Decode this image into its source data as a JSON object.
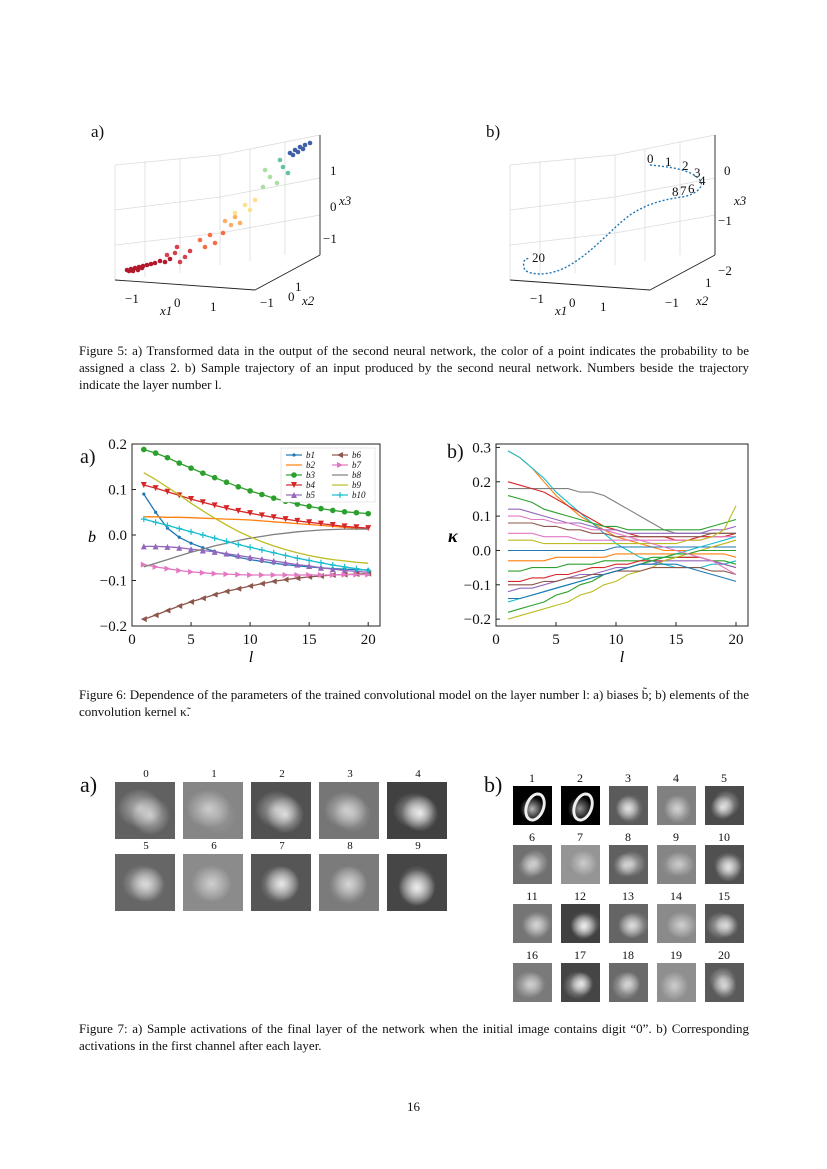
{
  "figure5": {
    "panel_a": "a)",
    "panel_b": "b)",
    "caption": "Figure 5: a) Transformed data in the output of the second neural network, the color of a point indicates the probability to be assigned a class 2. b) Sample trajectory of an input produced by the second neural network. Numbers beside the trajectory indicate the layer number l.",
    "a_axes": {
      "x1_label": "x1",
      "x2_label": "x2",
      "x3_label": "x3",
      "x1_ticks": [
        "−1",
        "0",
        "1"
      ],
      "x2_ticks": [
        "1",
        "0",
        "−1"
      ],
      "x3_ticks": [
        "1",
        "0",
        "−1"
      ]
    },
    "b_axes": {
      "x1_label": "x1",
      "x2_label": "x2",
      "x3_label": "x3",
      "x1_ticks": [
        "−1",
        "0",
        "1"
      ],
      "x2_ticks": [
        "1",
        "−1"
      ],
      "x3_ticks": [
        "0",
        "−1",
        "−2"
      ]
    },
    "b_layer_labels": [
      "0",
      "1",
      "2",
      "3",
      "4",
      "8",
      "7",
      "6",
      "20"
    ]
  },
  "figure6": {
    "panel_a": "a)",
    "panel_b": "b)",
    "caption": "Figure 6: Dependence of the parameters of the trained convolutional model on the layer number l: a) biases b̃; b) elements of the convolution kernel κ̃.",
    "chart_data": [
      {
        "type": "line",
        "xlabel": "l",
        "ylabel": "b",
        "xlim": [
          0,
          21
        ],
        "ylim": [
          -0.2,
          0.2
        ],
        "xticks": [
          "0",
          "5",
          "10",
          "15",
          "20"
        ],
        "yticks": [
          "0.2",
          "0.1",
          "0.0",
          "−0.1",
          "−0.2"
        ],
        "legend_position": "top-right",
        "x": [
          1,
          2,
          3,
          4,
          5,
          6,
          7,
          8,
          9,
          10,
          11,
          12,
          13,
          14,
          15,
          16,
          17,
          18,
          19,
          20
        ],
        "series": [
          {
            "name": "b1",
            "color": "#1f77b4",
            "marker": "dot",
            "values": [
              0.09,
              0.05,
              0.015,
              -0.005,
              -0.018,
              -0.028,
              -0.036,
              -0.043,
              -0.049,
              -0.054,
              -0.058,
              -0.062,
              -0.065,
              -0.068,
              -0.07,
              -0.072,
              -0.074,
              -0.075,
              -0.076,
              -0.077
            ]
          },
          {
            "name": "b2",
            "color": "#ff7f0e",
            "marker": "none",
            "values": [
              0.04,
              0.04,
              0.039,
              0.039,
              0.038,
              0.037,
              0.036,
              0.035,
              0.034,
              0.033,
              0.031,
              0.029,
              0.027,
              0.025,
              0.023,
              0.021,
              0.019,
              0.017,
              0.015,
              0.013
            ]
          },
          {
            "name": "b3",
            "color": "#2ca02c",
            "marker": "circle",
            "values": [
              0.188,
              0.18,
              0.17,
              0.158,
              0.147,
              0.136,
              0.126,
              0.116,
              0.106,
              0.097,
              0.089,
              0.081,
              0.074,
              0.068,
              0.063,
              0.058,
              0.054,
              0.051,
              0.049,
              0.047
            ]
          },
          {
            "name": "b4",
            "color": "#d62728",
            "marker": "triangle-down",
            "values": [
              0.11,
              0.103,
              0.095,
              0.087,
              0.079,
              0.072,
              0.065,
              0.059,
              0.053,
              0.048,
              0.043,
              0.039,
              0.035,
              0.031,
              0.028,
              0.025,
              0.022,
              0.019,
              0.017,
              0.015
            ]
          },
          {
            "name": "b5",
            "color": "#9467bd",
            "marker": "triangle-up",
            "values": [
              -0.025,
              -0.025,
              -0.026,
              -0.028,
              -0.031,
              -0.034,
              -0.037,
              -0.041,
              -0.045,
              -0.049,
              -0.053,
              -0.057,
              -0.061,
              -0.065,
              -0.068,
              -0.072,
              -0.075,
              -0.078,
              -0.08,
              -0.082
            ]
          },
          {
            "name": "b6",
            "color": "#8c564b",
            "marker": "triangle-left",
            "values": [
              -0.185,
              -0.176,
              -0.166,
              -0.156,
              -0.147,
              -0.139,
              -0.131,
              -0.124,
              -0.118,
              -0.112,
              -0.107,
              -0.102,
              -0.098,
              -0.095,
              -0.092,
              -0.09,
              -0.088,
              -0.087,
              -0.086,
              -0.085
            ]
          },
          {
            "name": "b7",
            "color": "#e377c2",
            "marker": "triangle-right",
            "values": [
              -0.065,
              -0.07,
              -0.074,
              -0.078,
              -0.081,
              -0.083,
              -0.085,
              -0.086,
              -0.087,
              -0.088,
              -0.088,
              -0.088,
              -0.088,
              -0.088,
              -0.088,
              -0.088,
              -0.088,
              -0.087,
              -0.087,
              -0.087
            ]
          },
          {
            "name": "b8",
            "color": "#7f7f7f",
            "marker": "none",
            "values": [
              -0.07,
              -0.062,
              -0.054,
              -0.046,
              -0.038,
              -0.031,
              -0.024,
              -0.018,
              -0.012,
              -0.007,
              -0.003,
              0.001,
              0.004,
              0.007,
              0.009,
              0.011,
              0.012,
              0.013,
              0.013,
              0.013
            ]
          },
          {
            "name": "b9",
            "color": "#bcbd22",
            "marker": "none",
            "values": [
              0.137,
              0.122,
              0.105,
              0.088,
              0.07,
              0.053,
              0.037,
              0.022,
              0.008,
              -0.004,
              -0.015,
              -0.024,
              -0.032,
              -0.039,
              -0.045,
              -0.05,
              -0.054,
              -0.057,
              -0.06,
              -0.062
            ]
          },
          {
            "name": "b10",
            "color": "#17becf",
            "marker": "plus",
            "values": [
              0.035,
              0.028,
              0.021,
              0.014,
              0.007,
              0.0,
              -0.007,
              -0.014,
              -0.021,
              -0.027,
              -0.033,
              -0.039,
              -0.045,
              -0.051,
              -0.056,
              -0.061,
              -0.066,
              -0.07,
              -0.074,
              -0.078
            ]
          }
        ]
      },
      {
        "type": "line",
        "xlabel": "l",
        "ylabel": "κ",
        "xlim": [
          0,
          21
        ],
        "ylim": [
          -0.22,
          0.31
        ],
        "xticks": [
          "0",
          "5",
          "10",
          "15",
          "20"
        ],
        "yticks": [
          "0.3",
          "0.2",
          "0.1",
          "0.0",
          "−0.1",
          "−0.2"
        ],
        "x": [
          1,
          2,
          3,
          4,
          5,
          6,
          7,
          8,
          9,
          10,
          11,
          12,
          13,
          14,
          15,
          16,
          17,
          18,
          19,
          20
        ],
        "series": [
          {
            "color": "#ff7f0e",
            "values": [
              0.29,
              0.27,
              0.24,
              0.2,
              0.16,
              0.13,
              0.1,
              0.08,
              0.06,
              0.04,
              0.03,
              0.02,
              0.01,
              0.0,
              0.0,
              0.0,
              0.01,
              0.01,
              0.02,
              0.03
            ]
          },
          {
            "color": "#17becf",
            "values": [
              0.29,
              0.27,
              0.24,
              0.21,
              0.17,
              0.14,
              0.11,
              0.08,
              0.05,
              0.02,
              0.0,
              -0.02,
              -0.03,
              -0.04,
              -0.05,
              -0.05,
              -0.05,
              -0.04,
              -0.04,
              -0.03
            ]
          },
          {
            "color": "#7f7f7f",
            "values": [
              0.18,
              0.18,
              0.18,
              0.18,
              0.18,
              0.18,
              0.17,
              0.17,
              0.16,
              0.14,
              0.12,
              0.1,
              0.08,
              0.06,
              0.05,
              0.05,
              0.05,
              0.05,
              0.05,
              0.05
            ]
          },
          {
            "color": "#d62728",
            "values": [
              0.2,
              0.19,
              0.18,
              0.17,
              0.15,
              0.13,
              0.11,
              0.09,
              0.07,
              0.06,
              0.05,
              0.04,
              0.04,
              0.04,
              0.03,
              0.03,
              0.04,
              0.04,
              0.04,
              0.05
            ]
          },
          {
            "color": "#2ca02c",
            "values": [
              0.16,
              0.15,
              0.14,
              0.12,
              0.11,
              0.1,
              0.09,
              0.08,
              0.07,
              0.07,
              0.06,
              0.06,
              0.06,
              0.06,
              0.06,
              0.06,
              0.06,
              0.07,
              0.08,
              0.09
            ]
          },
          {
            "color": "#9467bd",
            "values": [
              0.12,
              0.12,
              0.11,
              0.1,
              0.09,
              0.08,
              0.08,
              0.07,
              0.06,
              0.06,
              0.05,
              0.05,
              0.05,
              0.05,
              0.05,
              0.05,
              0.05,
              0.06,
              0.06,
              0.07
            ]
          },
          {
            "color": "#8c564b",
            "values": [
              0.08,
              0.08,
              0.08,
              0.07,
              0.07,
              0.06,
              0.06,
              0.05,
              0.05,
              0.04,
              0.04,
              0.04,
              0.04,
              0.04,
              0.04,
              0.04,
              0.04,
              0.05,
              0.05,
              0.05
            ]
          },
          {
            "color": "#e377c2",
            "values": [
              0.05,
              0.05,
              0.05,
              0.04,
              0.04,
              0.04,
              0.03,
              0.03,
              0.03,
              0.03,
              0.03,
              0.03,
              0.03,
              0.03,
              0.03,
              0.03,
              0.03,
              0.04,
              0.04,
              0.04
            ]
          },
          {
            "color": "#bcbd22",
            "values": [
              0.03,
              0.03,
              0.03,
              0.02,
              0.02,
              0.02,
              0.02,
              0.02,
              0.02,
              0.02,
              0.02,
              0.02,
              0.02,
              0.02,
              0.02,
              0.03,
              0.03,
              0.04,
              0.06,
              0.13
            ]
          },
          {
            "color": "#1f77b4",
            "values": [
              0.0,
              0.0,
              0.0,
              0.0,
              0.0,
              0.0,
              0.0,
              0.0,
              0.0,
              0.01,
              0.01,
              0.01,
              0.01,
              0.01,
              0.01,
              0.01,
              0.01,
              0.01,
              0.01,
              0.01
            ]
          },
          {
            "color": "#ff7f0e",
            "values": [
              -0.03,
              -0.03,
              -0.03,
              -0.03,
              -0.02,
              -0.02,
              -0.02,
              -0.02,
              -0.02,
              -0.01,
              -0.01,
              -0.01,
              -0.01,
              -0.01,
              -0.01,
              -0.01,
              -0.01,
              -0.01,
              -0.01,
              -0.02
            ]
          },
          {
            "color": "#2ca02c",
            "values": [
              -0.06,
              -0.06,
              -0.05,
              -0.05,
              -0.05,
              -0.04,
              -0.04,
              -0.04,
              -0.03,
              -0.03,
              -0.03,
              -0.03,
              -0.02,
              -0.02,
              -0.02,
              -0.02,
              -0.02,
              -0.03,
              -0.03,
              -0.04
            ]
          },
          {
            "color": "#d62728",
            "values": [
              -0.09,
              -0.09,
              -0.08,
              -0.08,
              -0.07,
              -0.07,
              -0.06,
              -0.05,
              -0.05,
              -0.04,
              -0.04,
              -0.03,
              -0.03,
              -0.03,
              -0.02,
              -0.02,
              -0.02,
              -0.03,
              -0.04,
              -0.05
            ]
          },
          {
            "color": "#9467bd",
            "values": [
              -0.12,
              -0.11,
              -0.11,
              -0.1,
              -0.09,
              -0.08,
              -0.07,
              -0.07,
              -0.06,
              -0.05,
              -0.05,
              -0.04,
              -0.04,
              -0.03,
              -0.03,
              -0.03,
              -0.03,
              -0.03,
              -0.04,
              -0.05
            ]
          },
          {
            "color": "#17becf",
            "values": [
              -0.15,
              -0.14,
              -0.13,
              -0.12,
              -0.11,
              -0.1,
              -0.09,
              -0.08,
              -0.07,
              -0.06,
              -0.05,
              -0.04,
              -0.03,
              -0.02,
              -0.01,
              0.0,
              0.01,
              0.02,
              0.03,
              0.04
            ]
          },
          {
            "color": "#bcbd22",
            "values": [
              -0.2,
              -0.19,
              -0.18,
              -0.17,
              -0.16,
              -0.15,
              -0.13,
              -0.12,
              -0.1,
              -0.09,
              -0.07,
              -0.06,
              -0.05,
              -0.03,
              -0.02,
              -0.01,
              0.0,
              0.01,
              0.02,
              0.03
            ]
          },
          {
            "color": "#2ca02c",
            "values": [
              -0.18,
              -0.17,
              -0.16,
              -0.15,
              -0.13,
              -0.12,
              -0.1,
              -0.09,
              -0.07,
              -0.06,
              -0.05,
              -0.04,
              -0.03,
              -0.02,
              -0.01,
              -0.01,
              0.0,
              0.0,
              0.0,
              0.0
            ]
          },
          {
            "color": "#8c564b",
            "values": [
              -0.1,
              -0.1,
              -0.1,
              -0.09,
              -0.09,
              -0.08,
              -0.08,
              -0.07,
              -0.07,
              -0.06,
              -0.06,
              -0.06,
              -0.05,
              -0.05,
              -0.05,
              -0.05,
              -0.05,
              -0.06,
              -0.06,
              -0.07
            ]
          },
          {
            "color": "#e377c2",
            "values": [
              0.1,
              0.1,
              0.09,
              0.09,
              0.08,
              0.08,
              0.07,
              0.06,
              0.06,
              0.05,
              0.04,
              0.03,
              0.02,
              0.01,
              0.0,
              -0.01,
              -0.02,
              -0.03,
              -0.05,
              -0.07
            ]
          },
          {
            "color": "#1f77b4",
            "values": [
              -0.14,
              -0.14,
              -0.13,
              -0.12,
              -0.11,
              -0.1,
              -0.09,
              -0.08,
              -0.07,
              -0.06,
              -0.05,
              -0.04,
              -0.04,
              -0.04,
              -0.04,
              -0.05,
              -0.06,
              -0.07,
              -0.08,
              -0.09
            ]
          }
        ]
      }
    ]
  },
  "figure7": {
    "panel_a": "a)",
    "panel_b": "b)",
    "caption": "Figure 7: a) Sample activations of the final layer of the network when the initial image contains digit “0”. b) Corresponding activations in the first channel after each layer.",
    "a_labels": [
      "0",
      "1",
      "2",
      "3",
      "4",
      "5",
      "6",
      "7",
      "8",
      "9"
    ],
    "b_labels": [
      "1",
      "2",
      "3",
      "4",
      "5",
      "6",
      "7",
      "8",
      "9",
      "10",
      "11",
      "12",
      "13",
      "14",
      "15",
      "16",
      "17",
      "18",
      "19",
      "20"
    ]
  },
  "page_number": "16"
}
